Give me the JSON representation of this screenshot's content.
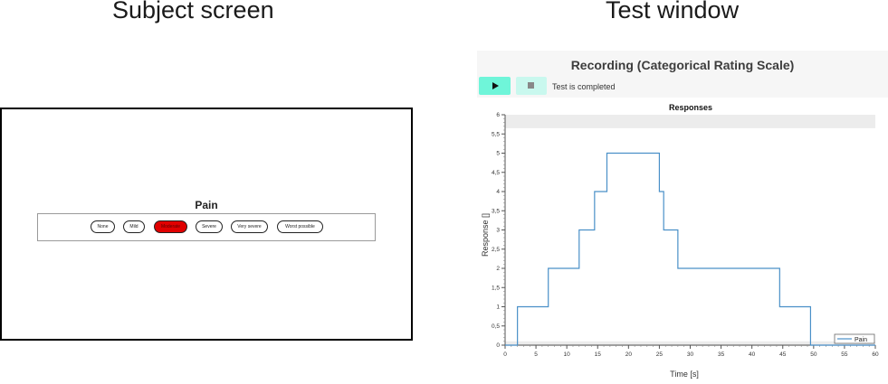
{
  "headings": {
    "subject": "Subject screen",
    "test": "Test window"
  },
  "subject_screen": {
    "title": "Pain",
    "options": [
      {
        "label": "None",
        "selected": false
      },
      {
        "label": "Mild",
        "selected": false
      },
      {
        "label": "Moderate",
        "selected": true
      },
      {
        "label": "Severe",
        "selected": false
      },
      {
        "label": "Very severe",
        "selected": false
      },
      {
        "label": "Worst possible",
        "selected": false
      }
    ],
    "selected_color": "#e00000"
  },
  "test_window": {
    "title": "Recording (Categorical Rating Scale)",
    "play_icon": "play-icon",
    "stop_icon": "stop-icon",
    "status": "Test is completed",
    "accent_color": "#6ff5d9"
  },
  "chart_data": {
    "type": "line",
    "title": "Responses",
    "xlabel": "Time [s]",
    "ylabel": "Response []",
    "xlim": [
      0,
      60
    ],
    "ylim": [
      0,
      6
    ],
    "xticks": [
      0,
      5,
      10,
      15,
      20,
      25,
      30,
      35,
      40,
      45,
      50,
      55,
      60
    ],
    "yticks": [
      "0",
      "0,5",
      "1",
      "1,5",
      "2",
      "2,5",
      "3",
      "3,5",
      "4",
      "4,5",
      "5",
      "5,5",
      "6"
    ],
    "legend_position": "bottom-right",
    "series": [
      {
        "name": "Pain",
        "color": "#4a90c8",
        "step": true,
        "x": [
          0,
          2,
          7,
          12,
          14.5,
          16.5,
          25,
          25.7,
          28,
          44.5,
          49.5,
          60
        ],
        "y": [
          0,
          1,
          2,
          3,
          4,
          5,
          4,
          3,
          2,
          1,
          0,
          0
        ]
      }
    ]
  }
}
